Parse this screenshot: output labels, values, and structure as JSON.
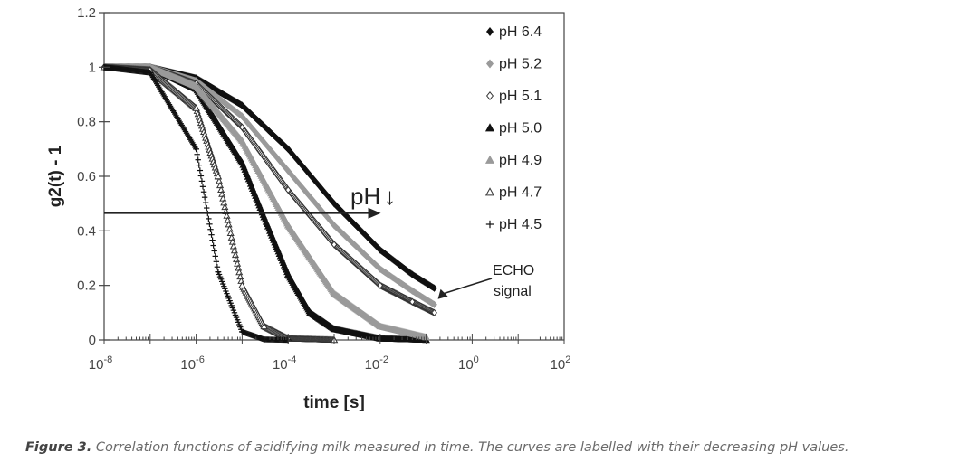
{
  "chart_data": {
    "type": "scatter",
    "x_scale": "log",
    "xlabel": "time [s]",
    "ylabel": "g2(t) - 1",
    "xlim": [
      1e-08,
      100
    ],
    "ylim": [
      0,
      1.2
    ],
    "x_ticks": [
      {
        "value": 1e-08,
        "base": "10",
        "exp": "-8"
      },
      {
        "value": 1e-06,
        "base": "10",
        "exp": "-6"
      },
      {
        "value": 0.0001,
        "base": "10",
        "exp": "-4"
      },
      {
        "value": 0.01,
        "base": "10",
        "exp": "-2"
      },
      {
        "value": 1,
        "base": "10",
        "exp": "0"
      },
      {
        "value": 100,
        "base": "10",
        "exp": "2"
      }
    ],
    "y_ticks": [
      "0",
      "0.2",
      "0.4",
      "0.6",
      "0.8",
      "1",
      "1.2"
    ],
    "legend_position": "top-right",
    "grid": false,
    "series": [
      {
        "name": "pH 6.4",
        "marker": "diamond-filled",
        "color": "#111111",
        "x": [
          1e-08,
          1e-07,
          1e-06,
          1e-05,
          0.0001,
          0.001,
          0.01,
          0.05,
          0.15
        ],
        "y": [
          1.0,
          1.0,
          0.96,
          0.86,
          0.7,
          0.5,
          0.33,
          0.24,
          0.19
        ]
      },
      {
        "name": "pH 5.2",
        "marker": "diamond-filled",
        "color": "#9a9a9a",
        "x": [
          1e-08,
          1e-07,
          1e-06,
          1e-05,
          0.0001,
          0.001,
          0.01,
          0.05,
          0.15
        ],
        "y": [
          1.0,
          1.0,
          0.95,
          0.82,
          0.62,
          0.42,
          0.26,
          0.18,
          0.13
        ]
      },
      {
        "name": "pH 5.1",
        "marker": "diamond-open",
        "color": "#333333",
        "x": [
          1e-08,
          1e-07,
          1e-06,
          1e-05,
          0.0001,
          0.001,
          0.01,
          0.05,
          0.15
        ],
        "y": [
          1.0,
          1.0,
          0.94,
          0.78,
          0.55,
          0.35,
          0.2,
          0.14,
          0.1
        ]
      },
      {
        "name": "pH 5.0",
        "marker": "triangle-filled",
        "color": "#111111",
        "x": [
          1e-08,
          1e-07,
          1e-06,
          1e-05,
          3e-05,
          0.0001,
          0.0003,
          0.001,
          0.01,
          0.1
        ],
        "y": [
          1.0,
          1.0,
          0.92,
          0.65,
          0.45,
          0.24,
          0.1,
          0.04,
          0.005,
          0.0
        ]
      },
      {
        "name": "pH 4.9",
        "marker": "triangle-filled",
        "color": "#9a9a9a",
        "x": [
          1e-08,
          1e-07,
          1e-06,
          1e-05,
          0.0001,
          0.001,
          0.01,
          0.1
        ],
        "y": [
          1.0,
          1.0,
          0.93,
          0.73,
          0.42,
          0.17,
          0.05,
          0.01
        ]
      },
      {
        "name": "pH 4.7",
        "marker": "triangle-open",
        "color": "#333333",
        "x": [
          1e-08,
          1e-07,
          1e-06,
          3e-06,
          1e-05,
          3e-05,
          0.0001,
          0.001
        ],
        "y": [
          1.0,
          0.99,
          0.85,
          0.6,
          0.2,
          0.05,
          0.005,
          0.0
        ]
      },
      {
        "name": "pH 4.5",
        "marker": "plus",
        "color": "#111111",
        "x": [
          1e-08,
          1e-07,
          1e-06,
          3e-06,
          1e-05,
          3e-05,
          0.0001
        ],
        "y": [
          1.0,
          0.98,
          0.7,
          0.25,
          0.03,
          0.002,
          0.0
        ]
      }
    ],
    "annotations": [
      {
        "text": "pH",
        "arrow_glyph": "↓",
        "y": 0.465,
        "x_start": 1e-08,
        "x_end": 0.006
      },
      {
        "text_line1": "ECHO",
        "text_line2": "signal",
        "arrow_to_x": 0.18,
        "arrow_to_y": 0.15
      }
    ]
  },
  "caption": {
    "label": "Figure 3.",
    "text": " Correlation functions of acidifying milk measured in time. The curves are labelled with their decreasing pH values."
  }
}
